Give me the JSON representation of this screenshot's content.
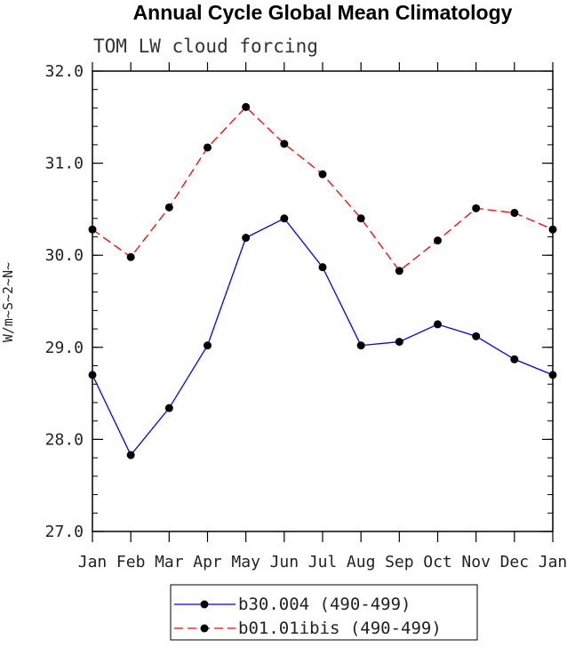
{
  "chart_data": {
    "type": "line",
    "title": "Annual Cycle Global Mean Climatology",
    "subtitle": "TOM LW cloud forcing",
    "xlabel": "",
    "ylabel": "W/m~S~2~N~",
    "categories": [
      "Jan",
      "Feb",
      "Mar",
      "Apr",
      "May",
      "Jun",
      "Jul",
      "Aug",
      "Sep",
      "Oct",
      "Nov",
      "Dec",
      "Jan"
    ],
    "ylim": [
      27.0,
      32.0
    ],
    "yticks": [
      "27.0",
      "28.0",
      "29.0",
      "30.0",
      "31.0",
      "32.0"
    ],
    "grid": false,
    "legend_position": "bottom-center",
    "series": [
      {
        "name": "b30.004 (490-499)",
        "color": "#0000ff",
        "dash": "solid",
        "marker": "filled-circle",
        "values": [
          28.7,
          27.83,
          28.34,
          29.02,
          30.19,
          30.4,
          29.87,
          29.02,
          29.06,
          29.25,
          29.12,
          28.87,
          28.7
        ]
      },
      {
        "name": "b01.01ibis (490-499)",
        "color": "#ff0000",
        "dash": "dashed",
        "marker": "filled-circle",
        "values": [
          30.28,
          29.98,
          30.52,
          31.17,
          31.61,
          31.21,
          30.88,
          30.4,
          29.83,
          30.16,
          30.51,
          30.46,
          30.28
        ]
      }
    ]
  }
}
